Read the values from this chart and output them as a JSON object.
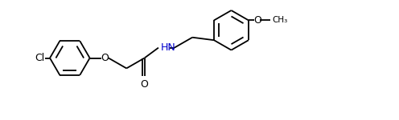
{
  "background_color": "#ffffff",
  "bond_color": "#000000",
  "N_color": "#0000cd",
  "default_color": "#000000",
  "lw": 1.3,
  "figw": 4.96,
  "figh": 1.5,
  "dpi": 100,
  "xlim": [
    -0.3,
    9.7
  ],
  "ylim": [
    0.0,
    3.0
  ],
  "fs": 9.0
}
